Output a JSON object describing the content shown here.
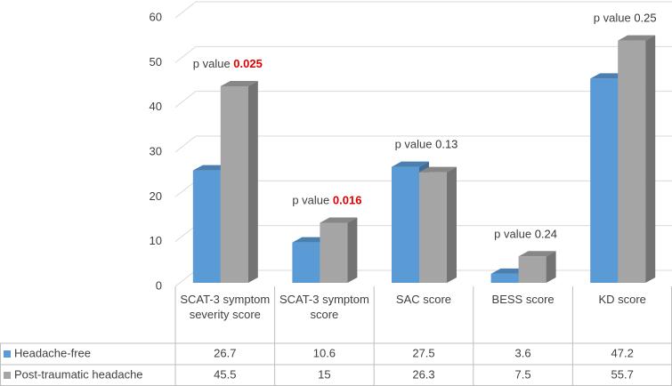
{
  "chart_data": {
    "type": "bar",
    "categories": [
      "SCAT-3 symptom severity score",
      "SCAT-3 symptom score",
      "SAC score",
      "BESS score",
      "KD score"
    ],
    "series": [
      {
        "name": "Headache-free",
        "color": "#5b9bd5",
        "values": [
          26.7,
          10.6,
          27.5,
          3.6,
          47.2
        ]
      },
      {
        "name": "Post-traumatic headache",
        "color": "#a5a5a5",
        "values": [
          45.5,
          15,
          26.3,
          7.5,
          55.7
        ]
      }
    ],
    "ylim": [
      0,
      60
    ],
    "yticks": [
      0,
      10,
      20,
      30,
      40,
      50,
      60
    ],
    "grid": true,
    "annotations": [
      {
        "label": "p value",
        "value": 0.025,
        "color": "#e00000",
        "bold": true
      },
      {
        "label": "p value",
        "value": 0.016,
        "color": "#e00000",
        "bold": true
      },
      {
        "label": "p value",
        "value": 0.13,
        "color": "#333333",
        "bold": false
      },
      {
        "label": "p value",
        "value": 0.24,
        "color": "#333333",
        "bold": false
      },
      {
        "label": "p value",
        "value": 0.25,
        "color": "#333333",
        "bold": false
      }
    ]
  }
}
